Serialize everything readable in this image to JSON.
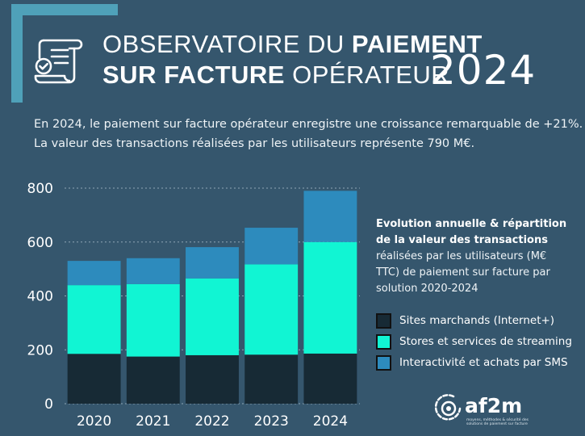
{
  "header": {
    "title_line1_thin": "OBSERVATOIRE DU",
    "title_line1_bold": "PAIEMENT",
    "title_line2_bold": "SUR FACTURE",
    "title_line2_thin": "OPÉRATEUR",
    "year": "2024",
    "icon": "invoice-check-icon"
  },
  "intro": {
    "line1": "En 2024, le paiement sur facture opérateur enregistre une croissance remarquable de +21%.",
    "line2": "La valeur des transactions réalisées par les utilisateurs représente 790 M€."
  },
  "legend": {
    "description_bold": "Evolution annuelle & répartition de la valeur des transactions",
    "description_rest": "réalisées par les utilisateurs (M€ TTC) de paiement sur facture par solution 2020-2024"
  },
  "colors": {
    "background": "#35566d",
    "accent": "#4fa1b9",
    "sites": "#172a35",
    "streaming": "#11f5d3",
    "sms": "#2d8bbd",
    "axis_text": "#ffffff"
  },
  "chart_data": {
    "type": "bar",
    "stacked": true,
    "categories": [
      "2020",
      "2021",
      "2022",
      "2023",
      "2024"
    ],
    "series": [
      {
        "name": "Sites marchands (Internet+)",
        "color": "#172a35",
        "values": [
          185,
          175,
          180,
          182,
          186
        ]
      },
      {
        "name": "Stores et services de streaming",
        "color": "#11f5d3",
        "values": [
          255,
          269,
          285,
          335,
          414
        ]
      },
      {
        "name": "Interactivité et achats par SMS",
        "color": "#2d8bbd",
        "values": [
          90,
          96,
          116,
          136,
          190
        ]
      }
    ],
    "yticks": [
      0,
      200,
      400,
      600,
      800
    ],
    "ylim": [
      0,
      800
    ],
    "grid": true
  },
  "logo": {
    "name": "af2m",
    "tagline": "moyens, méthodes & sécurité des solutions de paiement sur facture"
  }
}
